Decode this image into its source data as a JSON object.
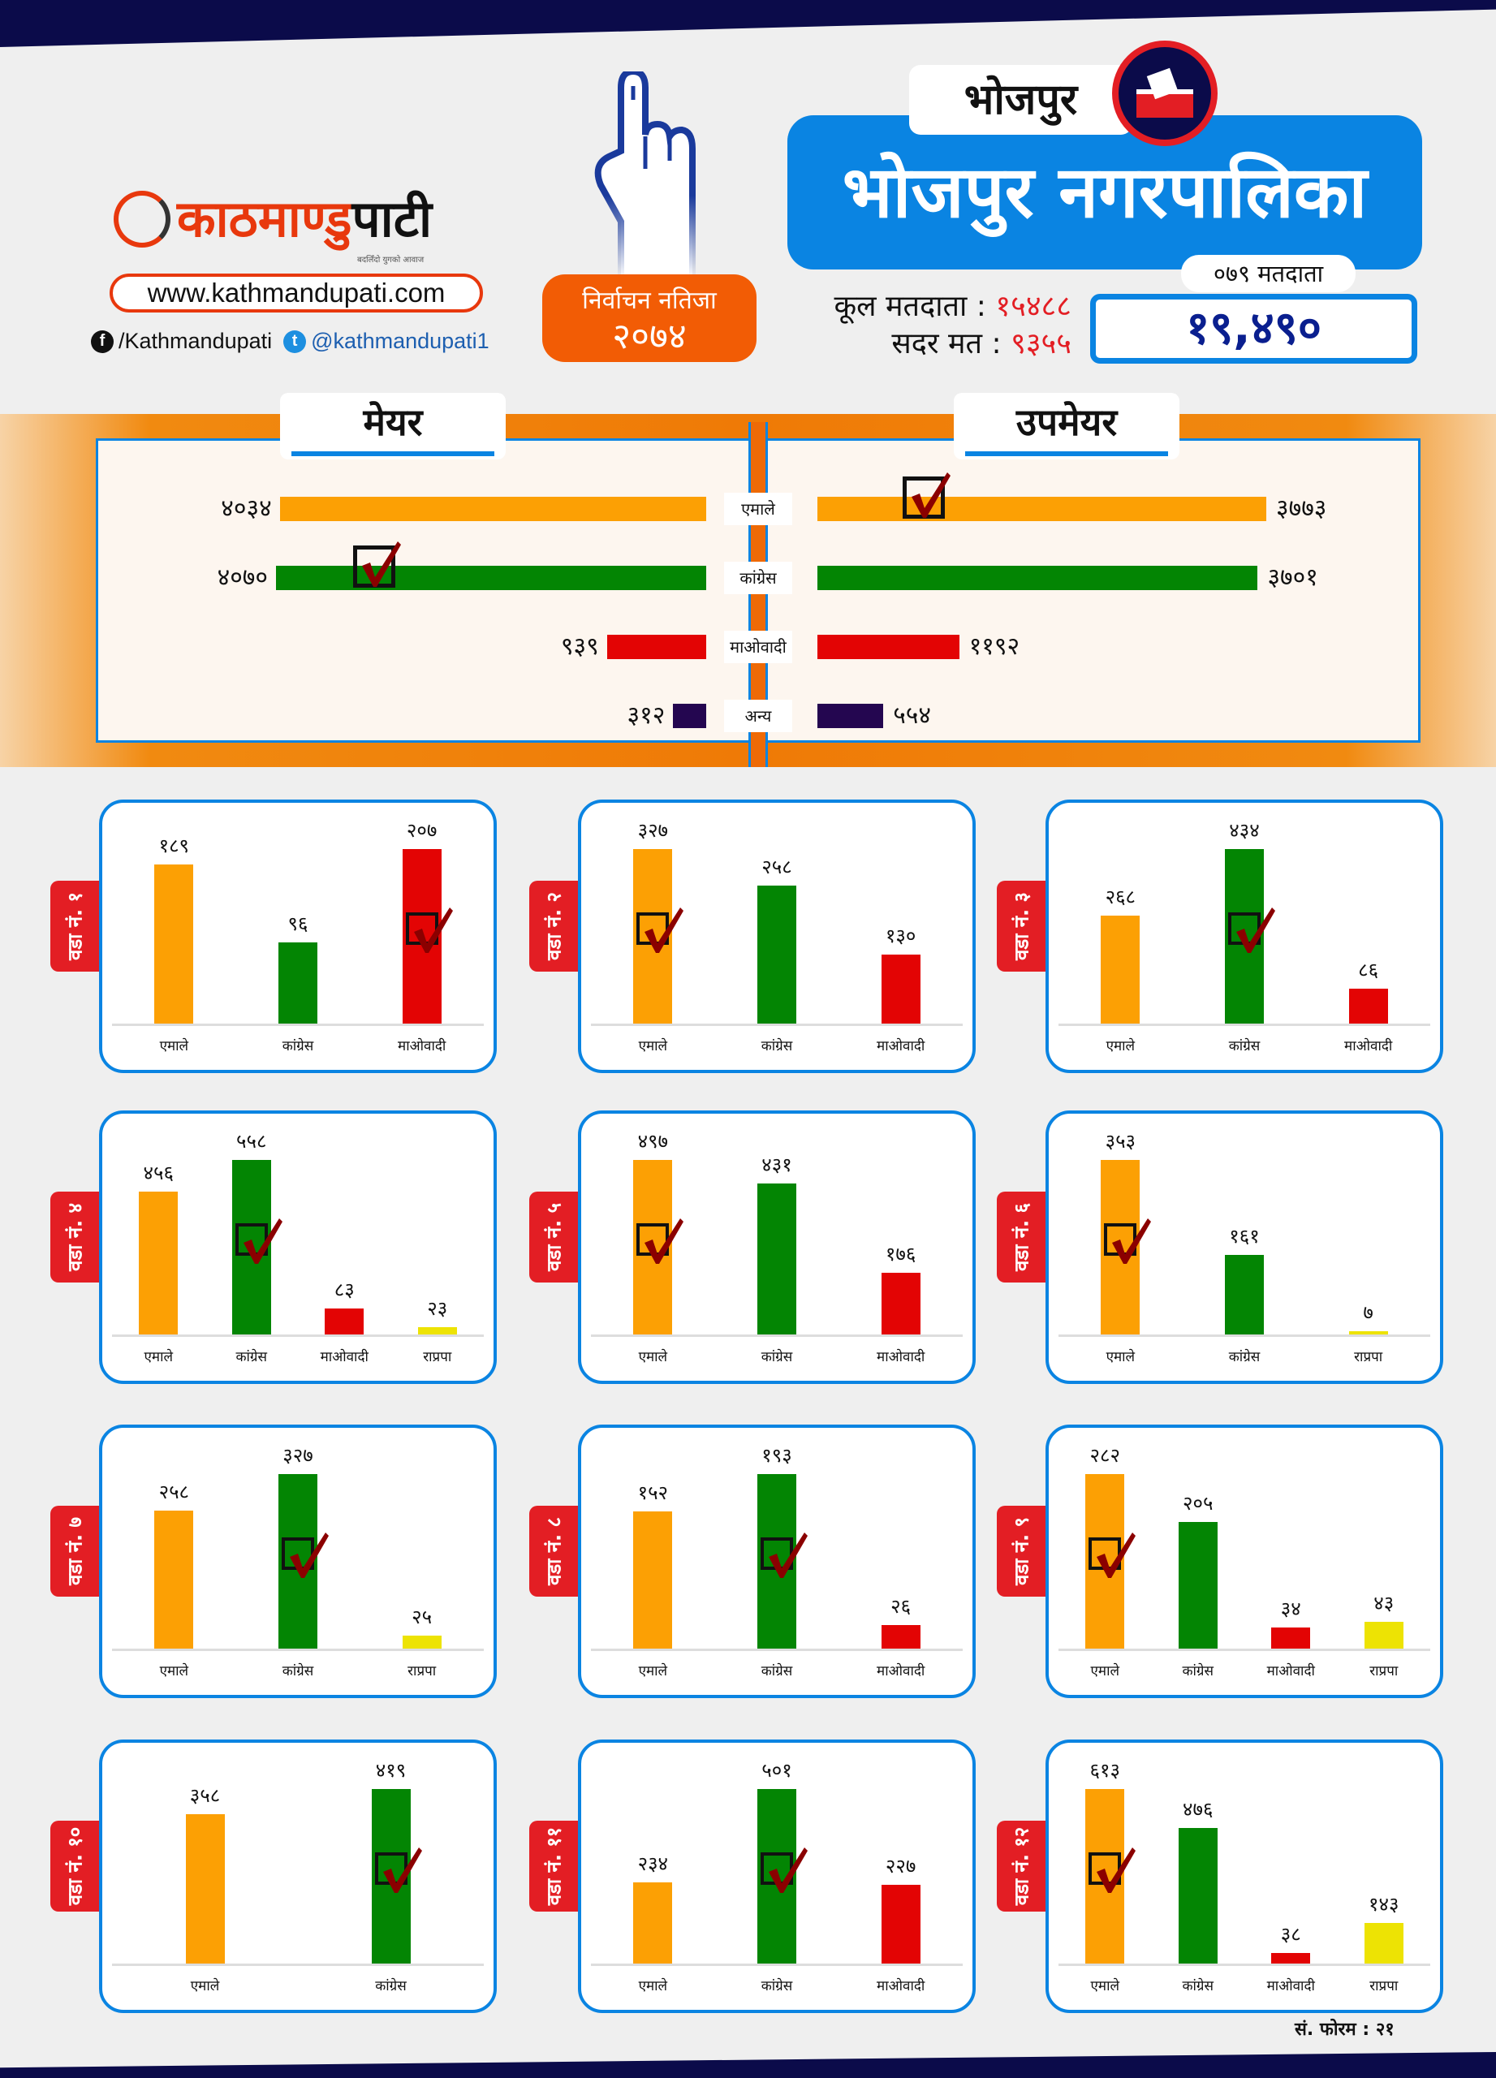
{
  "brand": {
    "logo_part1": "काठमाण्डु",
    "logo_part2": "पाटी",
    "tagline": "बदलिँदो युगको आवाज",
    "website": "www.kathmandupati.com",
    "facebook": "/Kathmandupati",
    "twitter": "@kathmandupati1"
  },
  "election": {
    "line1": "निर्वाचन नतिजा",
    "year": "२०७४"
  },
  "district": "भोजपुर",
  "municipality": "भोजपुर नगरपालिका",
  "voters": {
    "total_label": "कूल मतदाता :",
    "total": "१५४८८",
    "valid_label": "सदर मत :",
    "valid": "९३५५",
    "label_079": "०७९ मतदाता",
    "count_079": "१९,४९०"
  },
  "colors": {
    "uml": "#fca004",
    "congress": "#038503",
    "maoist": "#e30404",
    "other": "#240650",
    "rpp": "#ede304",
    "accent": "#0a84e2"
  },
  "summary": {
    "mayor_title": "मेयर",
    "deputy_title": "उपमेयर",
    "rows": [
      {
        "party": "एमाले",
        "key": "uml",
        "mayor": 4034,
        "mayor_text": "४०३४",
        "deputy": 3773,
        "deputy_text": "३७७३",
        "deputy_winner": true
      },
      {
        "party": "कांग्रेस",
        "key": "congress",
        "mayor": 4070,
        "mayor_text": "४०७०",
        "deputy": 3701,
        "deputy_text": "३७०१",
        "mayor_winner": true
      },
      {
        "party": "माओवादी",
        "key": "maoist",
        "mayor": 939,
        "mayor_text": "९३९",
        "deputy": 1192,
        "deputy_text": "११९२"
      },
      {
        "party": "अन्य",
        "key": "other",
        "mayor": 312,
        "mayor_text": "३१२",
        "deputy": 554,
        "deputy_text": "५५४"
      }
    ]
  },
  "wards": [
    {
      "label": "वडा नं. १",
      "winner": 2,
      "bars": [
        {
          "p": "एमाले",
          "k": "uml",
          "v": 189,
          "t": "१८९"
        },
        {
          "p": "कांग्रेस",
          "k": "congress",
          "v": 96,
          "t": "९६"
        },
        {
          "p": "माओवादी",
          "k": "maoist",
          "v": 207,
          "t": "२०७"
        }
      ]
    },
    {
      "label": "वडा नं. २",
      "winner": 0,
      "bars": [
        {
          "p": "एमाले",
          "k": "uml",
          "v": 327,
          "t": "३२७"
        },
        {
          "p": "कांग्रेस",
          "k": "congress",
          "v": 258,
          "t": "२५८"
        },
        {
          "p": "माओवादी",
          "k": "maoist",
          "v": 130,
          "t": "१३०"
        }
      ]
    },
    {
      "label": "वडा नं. ३",
      "winner": 1,
      "bars": [
        {
          "p": "एमाले",
          "k": "uml",
          "v": 268,
          "t": "२६८"
        },
        {
          "p": "कांग्रेस",
          "k": "congress",
          "v": 434,
          "t": "४३४"
        },
        {
          "p": "माओवादी",
          "k": "maoist",
          "v": 86,
          "t": "८६"
        }
      ]
    },
    {
      "label": "वडा नं. ४",
      "winner": 1,
      "bars": [
        {
          "p": "एमाले",
          "k": "uml",
          "v": 456,
          "t": "४५६"
        },
        {
          "p": "कांग्रेस",
          "k": "congress",
          "v": 558,
          "t": "५५८"
        },
        {
          "p": "माओवादी",
          "k": "maoist",
          "v": 83,
          "t": "८३"
        },
        {
          "p": "राप्रपा",
          "k": "rpp",
          "v": 23,
          "t": "२३"
        }
      ]
    },
    {
      "label": "वडा नं. ५",
      "winner": 0,
      "bars": [
        {
          "p": "एमाले",
          "k": "uml",
          "v": 497,
          "t": "४९७"
        },
        {
          "p": "कांग्रेस",
          "k": "congress",
          "v": 431,
          "t": "४३१"
        },
        {
          "p": "माओवादी",
          "k": "maoist",
          "v": 176,
          "t": "१७६"
        }
      ]
    },
    {
      "label": "वडा नं. ६",
      "winner": 0,
      "bars": [
        {
          "p": "एमाले",
          "k": "uml",
          "v": 353,
          "t": "३५३"
        },
        {
          "p": "कांग्रेस",
          "k": "congress",
          "v": 161,
          "t": "१६१"
        },
        {
          "p": "राप्रपा",
          "k": "rpp",
          "v": 7,
          "t": "७"
        }
      ]
    },
    {
      "label": "वडा नं. ७",
      "winner": 1,
      "bars": [
        {
          "p": "एमाले",
          "k": "uml",
          "v": 258,
          "t": "२५८"
        },
        {
          "p": "कांग्रेस",
          "k": "congress",
          "v": 327,
          "t": "३२७"
        },
        {
          "p": "राप्रपा",
          "k": "rpp",
          "v": 25,
          "t": "२५"
        }
      ]
    },
    {
      "label": "वडा नं. ८",
      "winner": 1,
      "bars": [
        {
          "p": "एमाले",
          "k": "uml",
          "v": 152,
          "t": "१५२"
        },
        {
          "p": "कांग्रेस",
          "k": "congress",
          "v": 193,
          "t": "१९३"
        },
        {
          "p": "माओवादी",
          "k": "maoist",
          "v": 26,
          "t": "२६"
        }
      ]
    },
    {
      "label": "वडा नं. ९",
      "winner": 0,
      "bars": [
        {
          "p": "एमाले",
          "k": "uml",
          "v": 282,
          "t": "२८२"
        },
        {
          "p": "कांग्रेस",
          "k": "congress",
          "v": 205,
          "t": "२०५"
        },
        {
          "p": "माओवादी",
          "k": "maoist",
          "v": 34,
          "t": "३४"
        },
        {
          "p": "राप्रपा",
          "k": "rpp",
          "v": 43,
          "t": "४३"
        }
      ]
    },
    {
      "label": "वडा नं. १०",
      "winner": 1,
      "bars": [
        {
          "p": "एमाले",
          "k": "uml",
          "v": 358,
          "t": "३५८"
        },
        {
          "p": "कांग्रेस",
          "k": "congress",
          "v": 419,
          "t": "४१९"
        }
      ]
    },
    {
      "label": "वडा नं. ११",
      "winner": 1,
      "bars": [
        {
          "p": "एमाले",
          "k": "uml",
          "v": 234,
          "t": "२३४"
        },
        {
          "p": "कांग्रेस",
          "k": "congress",
          "v": 501,
          "t": "५०१"
        },
        {
          "p": "माओवादी",
          "k": "maoist",
          "v": 227,
          "t": "२२७"
        }
      ]
    },
    {
      "label": "वडा नं. १२",
      "winner": 0,
      "bars": [
        {
          "p": "एमाले",
          "k": "uml",
          "v": 613,
          "t": "६१३"
        },
        {
          "p": "कांग्रेस",
          "k": "congress",
          "v": 476,
          "t": "४७६"
        },
        {
          "p": "माओवादी",
          "k": "maoist",
          "v": 38,
          "t": "३८"
        },
        {
          "p": "राप्रपा",
          "k": "rpp",
          "v": 143,
          "t": "१४३"
        }
      ]
    }
  ],
  "footer": {
    "form": "सं. फोरम : २१"
  }
}
